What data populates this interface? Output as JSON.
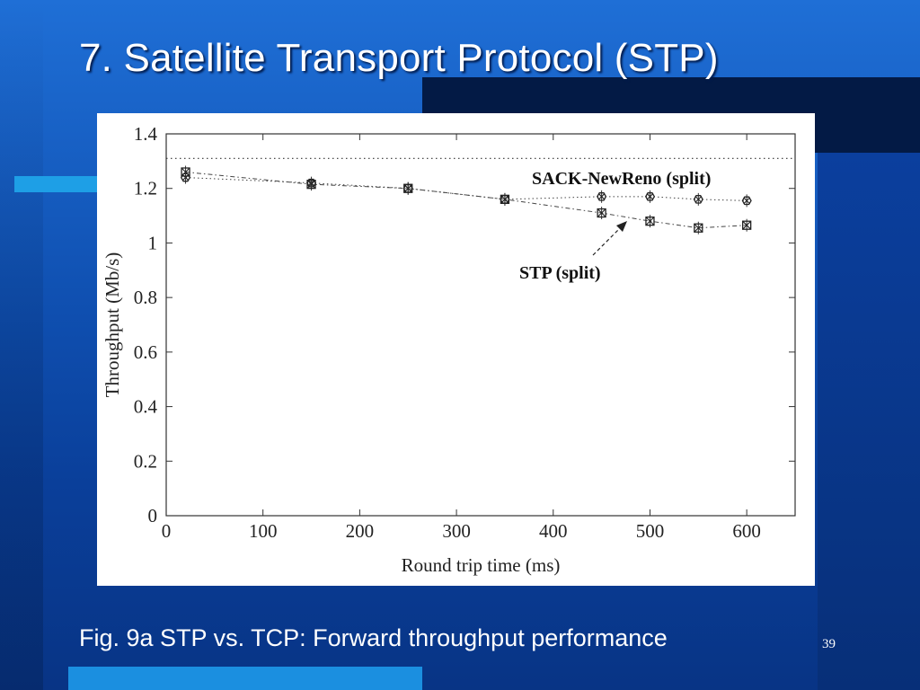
{
  "slide": {
    "title": "7. Satellite Transport Protocol (STP)",
    "caption": "Fig. 9a STP vs. TCP: Forward throughput performance",
    "page_number": "39"
  },
  "colors": {
    "background": "#0f4fb0",
    "accent_cyan": "#1e9fe6",
    "dark_band": "#031a45",
    "text": "#ffffff"
  },
  "chart_data": {
    "type": "scatter",
    "xlabel": "Round trip time (ms)",
    "ylabel": "Throughput (Mb/s)",
    "xlim": [
      0,
      650
    ],
    "ylim": [
      0,
      1.4
    ],
    "x_ticks": [
      "0",
      "100",
      "200",
      "300",
      "400",
      "500",
      "600"
    ],
    "y_ticks": [
      "0",
      "0.2",
      "0.4",
      "0.6",
      "0.8",
      "1",
      "1.2",
      "1.4"
    ],
    "reference_line": {
      "y": 1.31,
      "style": "dotted"
    },
    "series": [
      {
        "name": "SACK-NewReno (split)",
        "marker": "hexagon-x",
        "x": [
          20,
          150,
          250,
          350,
          450,
          500,
          550,
          600
        ],
        "y": [
          1.24,
          1.22,
          1.2,
          1.16,
          1.17,
          1.17,
          1.16,
          1.155
        ]
      },
      {
        "name": "STP (split)",
        "marker": "box-x",
        "x": [
          20,
          150,
          250,
          350,
          450,
          500,
          550,
          600
        ],
        "y": [
          1.26,
          1.215,
          1.2,
          1.16,
          1.11,
          1.08,
          1.055,
          1.065
        ]
      }
    ],
    "annotations": [
      {
        "text": "SACK-NewReno (split)",
        "points_to_series": 0
      },
      {
        "text": "STP (split)",
        "points_to_series": 1,
        "arrow": true
      }
    ],
    "grid": false
  }
}
